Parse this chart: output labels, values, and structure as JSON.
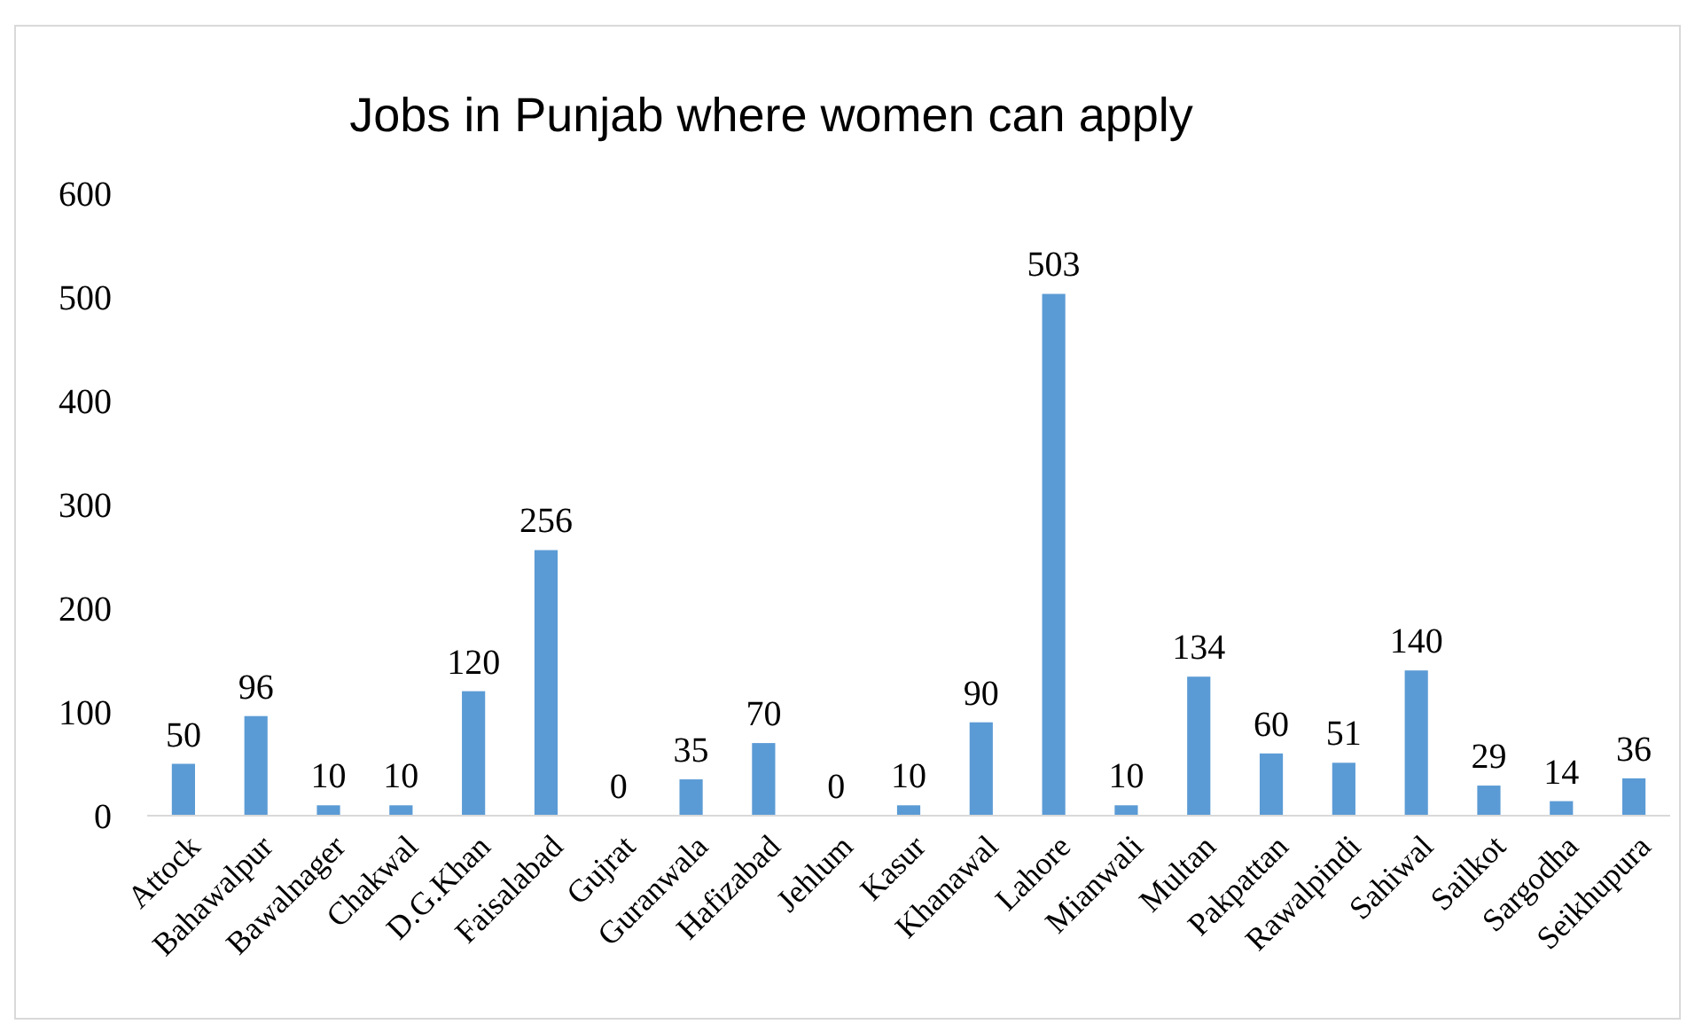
{
  "chart_data": {
    "type": "bar",
    "title": "Jobs in Punjab where women can apply",
    "categories": [
      "Attock",
      "Bahawalpur",
      "Bawalnager",
      "Chakwal",
      "D.G.Khan",
      "Faisalabad",
      "Gujrat",
      "Guranwala",
      "Hafizabad",
      "Jehlum",
      "Kasur",
      "Khanawal",
      "Lahore",
      "Mianwali",
      "Multan",
      "Pakpattan",
      "Rawalpindi",
      "Sahiwal",
      "Sailkot",
      "Sargodha",
      "Seikhupura"
    ],
    "values": [
      50,
      96,
      10,
      10,
      120,
      256,
      0,
      35,
      70,
      0,
      10,
      90,
      503,
      10,
      134,
      60,
      51,
      140,
      29,
      14,
      36
    ],
    "color": "#5b9bd5",
    "ylim": [
      0,
      600
    ],
    "yticks": [
      0,
      100,
      200,
      300,
      400,
      500,
      600
    ],
    "data_labels": true
  }
}
